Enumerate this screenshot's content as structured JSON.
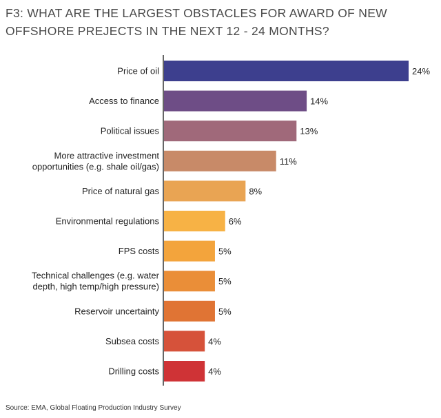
{
  "chart_data": {
    "type": "bar",
    "orientation": "horizontal",
    "title_lines": [
      "F3:  WHAT ARE THE LARGEST OBSTACLES FOR AWARD OF NEW",
      "OFFSHORE PREJECTS IN THE NEXT 12 - 24 MONTHS?"
    ],
    "categories": [
      [
        "Price of oil"
      ],
      [
        "Access to finance"
      ],
      [
        "Political issues"
      ],
      [
        "More attractive investment",
        "opportunities (e.g. shale oil/gas)"
      ],
      [
        "Price of natural gas"
      ],
      [
        "Environmental regulations"
      ],
      [
        "FPS costs"
      ],
      [
        "Technical challenges (e.g. water",
        "depth, high temp/high pressure)"
      ],
      [
        "Reservoir uncertainty"
      ],
      [
        "Subsea costs"
      ],
      [
        "Drilling costs"
      ]
    ],
    "values": [
      24,
      14,
      13,
      11,
      8,
      6,
      5,
      5,
      5,
      4,
      4
    ],
    "value_labels": [
      "24%",
      "14%",
      "13%",
      "11%",
      "8%",
      "6%",
      "5%",
      "5%",
      "5%",
      "4%",
      "4%"
    ],
    "colors": [
      "#3d3f8e",
      "#6e4d86",
      "#a0697a",
      "#c88a68",
      "#e9a453",
      "#f7b245",
      "#f3a43c",
      "#ea8e38",
      "#e07434",
      "#d6523a",
      "#cf3336"
    ],
    "xlim": [
      0,
      24
    ],
    "xlabel": "",
    "ylabel": "",
    "source": "Source: EMA, Global Floating Production Industry Survey"
  }
}
